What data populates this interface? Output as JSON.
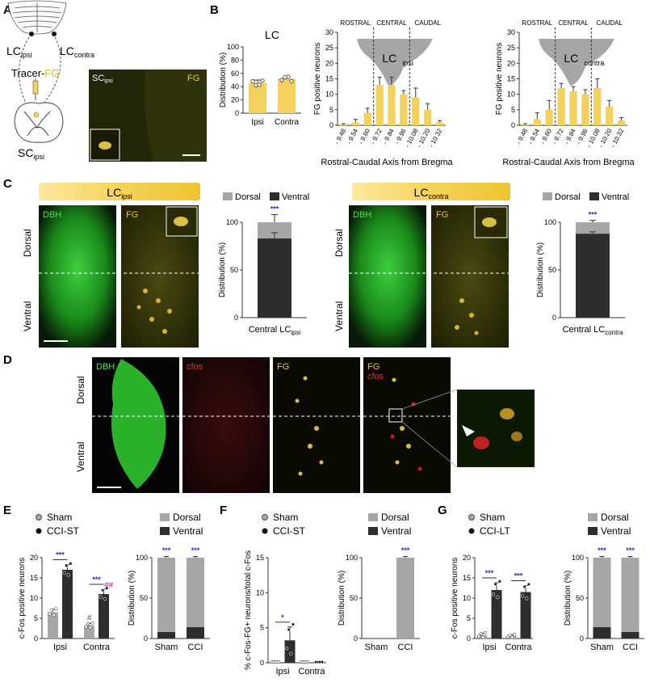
{
  "colors": {
    "yellow": "#f2d25c",
    "dark": "#2e2e2e",
    "light": "#a6a6a6",
    "micro_bg": "#1c1c00",
    "star": "#2a2ab8",
    "hash": "#a0288a"
  },
  "panelA": {
    "letter": "A",
    "lc_ipsi_main": "LC",
    "lc_ipsi_sub": "ipsi",
    "lc_contra_main": "LC",
    "lc_contra_sub": "contra",
    "tracer_main": "Tracer-",
    "tracer_fg": "FG",
    "sc_main": "SC",
    "sc_sub": "ipsi",
    "micro_sc_main": "SC",
    "micro_sc_sub": "ipsi",
    "micro_fg": "FG"
  },
  "panelB": {
    "letter": "B",
    "lc_chart": {
      "title": "LC",
      "ylabel": "Distribution (%)",
      "ylim": [
        0,
        100
      ],
      "yticks": [
        0,
        20,
        40,
        60,
        80,
        100
      ],
      "categories": [
        "Ipsi",
        "Contra"
      ],
      "values": [
        46,
        52
      ],
      "err": [
        4,
        3
      ],
      "points": [
        [
          48,
          42,
          43,
          49
        ],
        [
          50,
          54,
          55,
          48
        ]
      ]
    },
    "bregma_ipsi": {
      "type": "bar",
      "ylabel": "FG positive neurons",
      "xlabel": "Rostral-Caudal Axis from Bregma",
      "ylim": [
        0,
        30
      ],
      "yticks": [
        0,
        5,
        10,
        15,
        20,
        25,
        30
      ],
      "categories": [
        "- 9.48",
        "- 9.54",
        "- 9.60",
        "- 9.72",
        "- 9.84",
        "- 9.96",
        "- 10.08",
        "- 10.20",
        "- 10.32"
      ],
      "values": [
        0.2,
        0.9,
        4,
        13,
        13,
        10,
        9,
        5,
        1
      ],
      "err": [
        0.3,
        1,
        1.5,
        2.5,
        2.5,
        1.2,
        3,
        2,
        0.5
      ],
      "regions": [
        "ROSTRAL",
        "CENTRAL",
        "CAUDAL"
      ],
      "lc_main": "LC",
      "lc_sub": "ipsi"
    },
    "bregma_contra": {
      "type": "bar",
      "ylabel": "FG positive neurons",
      "xlabel": "Rostral-Caudal Axis from Bregma",
      "ylim": [
        0,
        30
      ],
      "yticks": [
        0,
        5,
        10,
        15,
        20,
        25,
        30
      ],
      "categories": [
        "- 9.48",
        "- 9.54",
        "- 9.60",
        "- 9.72",
        "- 9.84",
        "- 9.96",
        "- 10.08",
        "- 10.20",
        "- 10.32"
      ],
      "values": [
        0.2,
        2,
        5,
        12,
        11,
        10,
        12,
        6,
        1.5
      ],
      "err": [
        0.3,
        2,
        3,
        1.5,
        1.5,
        1.5,
        3,
        2,
        1
      ],
      "regions": [
        "ROSTRAL",
        "CENTRAL",
        "CAUDAL"
      ],
      "lc_main": "LC",
      "lc_sub": "contra"
    }
  },
  "panelC": {
    "letter": "C",
    "banner_ipsi_main": "LC",
    "banner_ipsi_sub": "ipsi",
    "banner_contra_main": "LC",
    "banner_contra_sub": "contra",
    "dbh": "DBH",
    "fg": "FG",
    "dorsal": "Dorsal",
    "ventral": "Ventral",
    "legend": [
      "Dorsal",
      "Ventral"
    ],
    "chart_ipsi": {
      "ylabel": "Distribution (%)",
      "ylim": [
        0,
        100
      ],
      "yticks": [
        0,
        50,
        100
      ],
      "ventral": 83,
      "ventral_err": 6,
      "total_err": 8,
      "star": "***",
      "xlabel_main": "Central LC",
      "xlabel_sub": "ipsi"
    },
    "chart_contra": {
      "ylabel": "Distribution (%)",
      "ylim": [
        0,
        100
      ],
      "yticks": [
        0,
        50,
        100
      ],
      "ventral": 88,
      "ventral_err": 2,
      "total_err": 2,
      "star": "***",
      "xlabel_main": "Central LC",
      "xlabel_sub": "contra"
    }
  },
  "panelD": {
    "letter": "D",
    "dbh": "DBH",
    "cfos": "cfos",
    "fg": "FG",
    "fg2": "FG",
    "cfos2": "cfos",
    "dorsal": "Dorsal",
    "ventral": "Ventral"
  },
  "panelE": {
    "letter": "E",
    "legend": [
      "Sham",
      "CCI-ST"
    ],
    "legend2": [
      "Dorsal",
      "Ventral"
    ],
    "chart": {
      "ylabel": "c-Fos positive neurons",
      "ylim": [
        0,
        20
      ],
      "yticks": [
        0,
        5,
        10,
        15,
        20
      ],
      "categories": [
        "Ipsi",
        "Contra"
      ],
      "series": [
        {
          "name": "Sham",
          "values": [
            6.5,
            3.2
          ],
          "err": [
            0.7,
            0.5
          ]
        },
        {
          "name": "CCI-ST",
          "values": [
            17,
            11
          ],
          "err": [
            1.3,
            1.2
          ]
        }
      ],
      "stars": [
        "***",
        "***"
      ],
      "hash_sham": "#",
      "hash_cci": "##"
    },
    "dist": {
      "ylabel": "Distribution (%)",
      "ylim": [
        0,
        100
      ],
      "yticks": [
        0,
        50,
        100
      ],
      "categories": [
        "Sham",
        "CCI"
      ],
      "ventral": [
        8,
        14
      ],
      "stars": [
        "***",
        "***"
      ]
    }
  },
  "panelF": {
    "letter": "F",
    "legend": [
      "Sham",
      "CCI-ST"
    ],
    "legend2": [
      "Dorsal",
      "Ventral"
    ],
    "chart": {
      "ylabel": "% c-Fos-FG+ neurons/total c-Fos",
      "ylim": [
        0,
        15
      ],
      "yticks": [
        0,
        5,
        10,
        15
      ],
      "categories": [
        "Ipsi",
        "Contra"
      ],
      "series": [
        {
          "name": "Sham",
          "values": [
            0.1,
            0.1
          ],
          "err": [
            0,
            0
          ]
        },
        {
          "name": "CCI-ST",
          "values": [
            3.2,
            0.1
          ],
          "err": [
            1.9,
            0
          ]
        }
      ],
      "stars": [
        "*"
      ]
    },
    "dist": {
      "ylabel": "Distribution (%)",
      "ylim": [
        0,
        100
      ],
      "yticks": [
        0,
        50,
        100
      ],
      "categories": [
        "Sham",
        "CCI"
      ],
      "ventral": [
        0,
        0
      ],
      "dorsal_visible": [
        false,
        true
      ],
      "stars": [
        "***"
      ]
    }
  },
  "panelG": {
    "letter": "G",
    "legend": [
      "Sham",
      "CCI-LT"
    ],
    "legend2": [
      "Dorsal",
      "Ventral"
    ],
    "chart": {
      "ylabel": "c-Fos positive neurons",
      "ylim": [
        0,
        20
      ],
      "yticks": [
        0,
        5,
        10,
        15,
        20
      ],
      "categories": [
        "Ipsi",
        "Contra"
      ],
      "series": [
        {
          "name": "Sham",
          "values": [
            0.8,
            0.6
          ],
          "err": [
            0.5,
            0.3
          ]
        },
        {
          "name": "CCI-LT",
          "values": [
            12,
            11.5
          ],
          "err": [
            1.8,
            1.6
          ]
        }
      ],
      "stars": [
        "***",
        "***"
      ]
    },
    "dist": {
      "ylabel": "Distribution (%)",
      "ylim": [
        0,
        100
      ],
      "yticks": [
        0,
        50,
        100
      ],
      "categories": [
        "Sham",
        "CCI"
      ],
      "ventral": [
        14,
        8
      ],
      "stars": [
        "***",
        "***"
      ]
    }
  },
  "chart_data": [
    {
      "type": "bar",
      "title": "LC",
      "categories": [
        "Ipsi",
        "Contra"
      ],
      "values": [
        46,
        52
      ],
      "ylabel": "Distribution (%)",
      "ylim": [
        0,
        100
      ]
    },
    {
      "type": "bar",
      "categories": [
        "- 9.48",
        "- 9.54",
        "- 9.60",
        "- 9.72",
        "- 9.84",
        "- 9.96",
        "- 10.08",
        "- 10.20",
        "- 10.32"
      ],
      "values": [
        0.2,
        0.9,
        4,
        13,
        13,
        10,
        9,
        5,
        1
      ],
      "ylabel": "FG positive neurons",
      "xlabel": "Rostral-Caudal Axis from Bregma",
      "ylim": [
        0,
        30
      ]
    },
    {
      "type": "bar",
      "categories": [
        "- 9.48",
        "- 9.54",
        "- 9.60",
        "- 9.72",
        "- 9.84",
        "- 9.96",
        "- 10.08",
        "- 10.20",
        "- 10.32"
      ],
      "values": [
        0.2,
        2,
        5,
        12,
        11,
        10,
        12,
        6,
        1.5
      ],
      "ylabel": "FG positive neurons",
      "xlabel": "Rostral-Caudal Axis from Bregma",
      "ylim": [
        0,
        30
      ]
    },
    {
      "type": "bar",
      "categories": [
        "Central LCipsi"
      ],
      "series": [
        {
          "name": "Ventral",
          "values": [
            83
          ]
        },
        {
          "name": "Dorsal",
          "values": [
            17
          ]
        }
      ],
      "ylabel": "Distribution (%)",
      "ylim": [
        0,
        100
      ]
    },
    {
      "type": "bar",
      "categories": [
        "Central LCcontra"
      ],
      "series": [
        {
          "name": "Ventral",
          "values": [
            88
          ]
        },
        {
          "name": "Dorsal",
          "values": [
            12
          ]
        }
      ],
      "ylabel": "Distribution (%)",
      "ylim": [
        0,
        100
      ]
    },
    {
      "type": "bar",
      "categories": [
        "Ipsi",
        "Contra"
      ],
      "series": [
        {
          "name": "Sham",
          "values": [
            6.5,
            3.2
          ]
        },
        {
          "name": "CCI-ST",
          "values": [
            17,
            11
          ]
        }
      ],
      "ylabel": "c-Fos positive neurons",
      "ylim": [
        0,
        20
      ]
    },
    {
      "type": "bar",
      "categories": [
        "Sham",
        "CCI"
      ],
      "series": [
        {
          "name": "Ventral",
          "values": [
            8,
            14
          ]
        },
        {
          "name": "Dorsal",
          "values": [
            92,
            86
          ]
        }
      ],
      "ylabel": "Distribution (%)",
      "ylim": [
        0,
        100
      ]
    },
    {
      "type": "bar",
      "categories": [
        "Ipsi",
        "Contra"
      ],
      "series": [
        {
          "name": "Sham",
          "values": [
            0.1,
            0.1
          ]
        },
        {
          "name": "CCI-ST",
          "values": [
            3.2,
            0.1
          ]
        }
      ],
      "ylabel": "% c-Fos-FG+ neurons/total c-Fos",
      "ylim": [
        0,
        15
      ]
    },
    {
      "type": "bar",
      "categories": [
        "Sham",
        "CCI"
      ],
      "series": [
        {
          "name": "Ventral",
          "values": [
            0,
            0
          ]
        },
        {
          "name": "Dorsal",
          "values": [
            0,
            100
          ]
        }
      ],
      "ylabel": "Distribution (%)",
      "ylim": [
        0,
        100
      ]
    },
    {
      "type": "bar",
      "categories": [
        "Ipsi",
        "Contra"
      ],
      "series": [
        {
          "name": "Sham",
          "values": [
            0.8,
            0.6
          ]
        },
        {
          "name": "CCI-LT",
          "values": [
            12,
            11.5
          ]
        }
      ],
      "ylabel": "c-Fos positive neurons",
      "ylim": [
        0,
        20
      ]
    },
    {
      "type": "bar",
      "categories": [
        "Sham",
        "CCI"
      ],
      "series": [
        {
          "name": "Ventral",
          "values": [
            14,
            8
          ]
        },
        {
          "name": "Dorsal",
          "values": [
            86,
            92
          ]
        }
      ],
      "ylabel": "Distribution (%)",
      "ylim": [
        0,
        100
      ]
    }
  ]
}
